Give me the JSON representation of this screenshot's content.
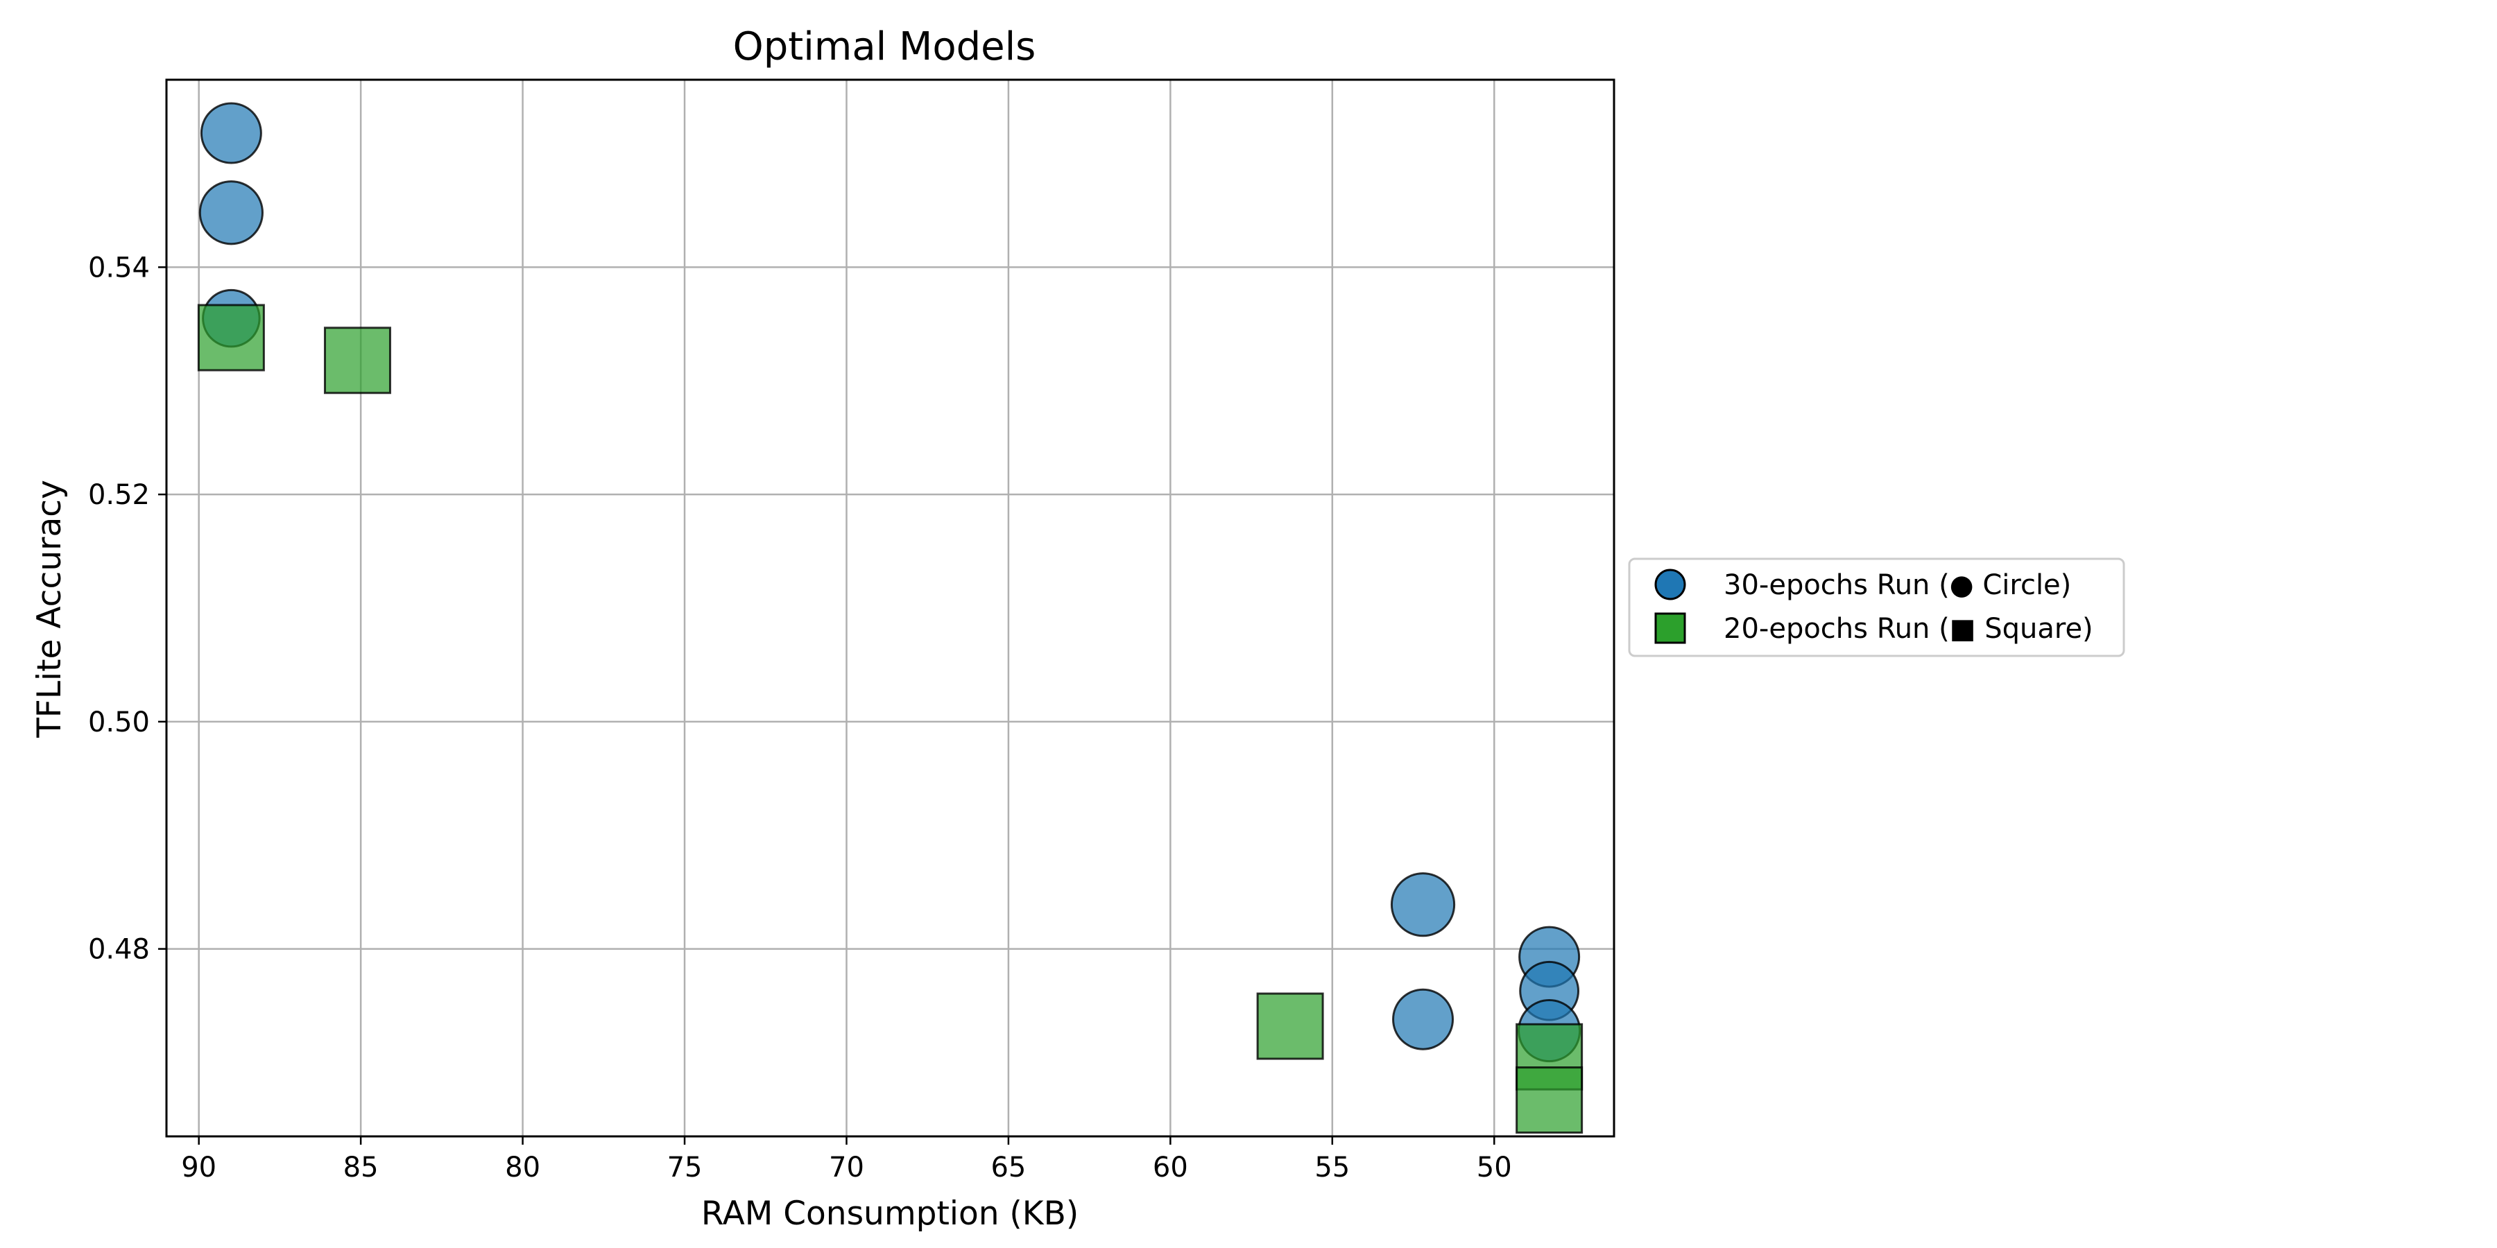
{
  "chart_data": {
    "type": "scatter",
    "title": "Optimal Models",
    "xlabel": "RAM Consumption (KB)",
    "ylabel": "TFLite Accuracy",
    "xlim": [
      91,
      46.3
    ],
    "ylim": [
      0.4635,
      0.5565
    ],
    "x_inverted": true,
    "xticks": [
      90,
      85,
      80,
      75,
      70,
      65,
      60,
      55,
      50
    ],
    "xtick_labels": [
      "90",
      "85",
      "80",
      "75",
      "70",
      "65",
      "60",
      "55",
      "50"
    ],
    "yticks": [
      0.48,
      0.5,
      0.52,
      0.54
    ],
    "ytick_labels": [
      "0.48",
      "0.50",
      "0.52",
      "0.54"
    ],
    "grid": true,
    "legend_position": "right, outside plot area",
    "series": [
      {
        "name": "30-epochs Run (● Circle)",
        "marker": "circle",
        "color": "#1f77b4",
        "points": [
          {
            "x": 89.0,
            "y": 0.5518,
            "size": 1.0
          },
          {
            "x": 89.0,
            "y": 0.5448,
            "size": 1.1
          },
          {
            "x": 89.0,
            "y": 0.5355,
            "size": 0.9
          },
          {
            "x": 52.2,
            "y": 0.4839,
            "size": 1.1
          },
          {
            "x": 52.2,
            "y": 0.4738,
            "size": 1.0
          },
          {
            "x": 48.3,
            "y": 0.4793,
            "size": 1.0
          },
          {
            "x": 48.3,
            "y": 0.4763,
            "size": 0.95
          },
          {
            "x": 48.3,
            "y": 0.4728,
            "size": 1.05
          }
        ]
      },
      {
        "name": "20-epochs Run (■ Square)",
        "marker": "square",
        "color": "#2ca02c",
        "points": [
          {
            "x": 89.0,
            "y": 0.5338,
            "size": 1.0
          },
          {
            "x": 85.1,
            "y": 0.5318,
            "size": 1.0
          },
          {
            "x": 56.3,
            "y": 0.4732,
            "size": 1.0
          },
          {
            "x": 48.3,
            "y": 0.4705,
            "size": 1.0
          },
          {
            "x": 48.3,
            "y": 0.4667,
            "size": 1.0
          }
        ]
      }
    ]
  }
}
